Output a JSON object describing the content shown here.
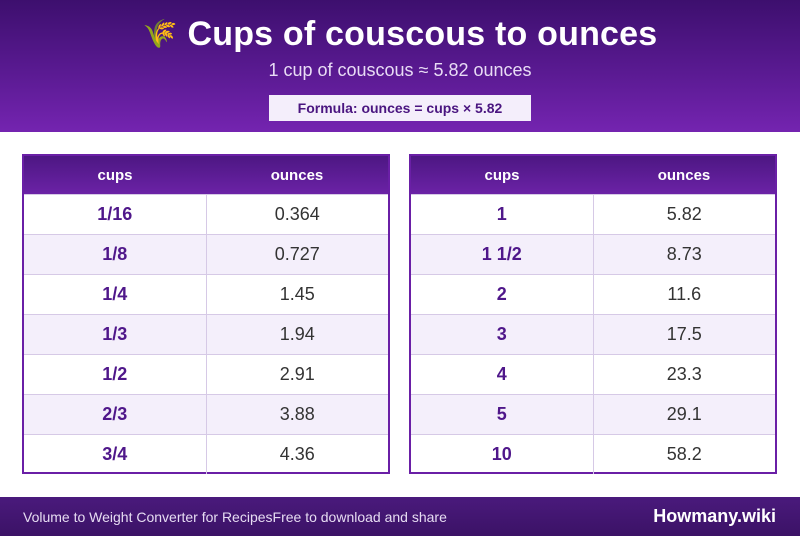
{
  "header": {
    "icon": "rice-plant-icon",
    "icon_glyph": "🌾",
    "title": "Cups of couscous to ounces",
    "subtitle": "1 cup of couscous ≈ 5.82 ounces",
    "formula": "Formula: ounces = cups × 5.82"
  },
  "tables": [
    {
      "headers": [
        "cups",
        "ounces"
      ],
      "rows": [
        [
          "1/16",
          "0.364"
        ],
        [
          "1/8",
          "0.727"
        ],
        [
          "1/4",
          "1.45"
        ],
        [
          "1/3",
          "1.94"
        ],
        [
          "1/2",
          "2.91"
        ],
        [
          "2/3",
          "3.88"
        ],
        [
          "3/4",
          "4.36"
        ]
      ]
    },
    {
      "headers": [
        "cups",
        "ounces"
      ],
      "rows": [
        [
          "1",
          "5.82"
        ],
        [
          "1 1/2",
          "8.73"
        ],
        [
          "2",
          "11.6"
        ],
        [
          "3",
          "17.5"
        ],
        [
          "4",
          "23.3"
        ],
        [
          "5",
          "29.1"
        ],
        [
          "10",
          "58.2"
        ]
      ]
    }
  ],
  "footer": {
    "left": "Volume to Weight Converter for Recipes",
    "mid": "Free to download and share",
    "brand": "Howmany.wiki"
  },
  "colors": {
    "header_purple": "#5a1a92",
    "accent_purple": "#6a1fa6",
    "row_alt": "#f4effb"
  }
}
